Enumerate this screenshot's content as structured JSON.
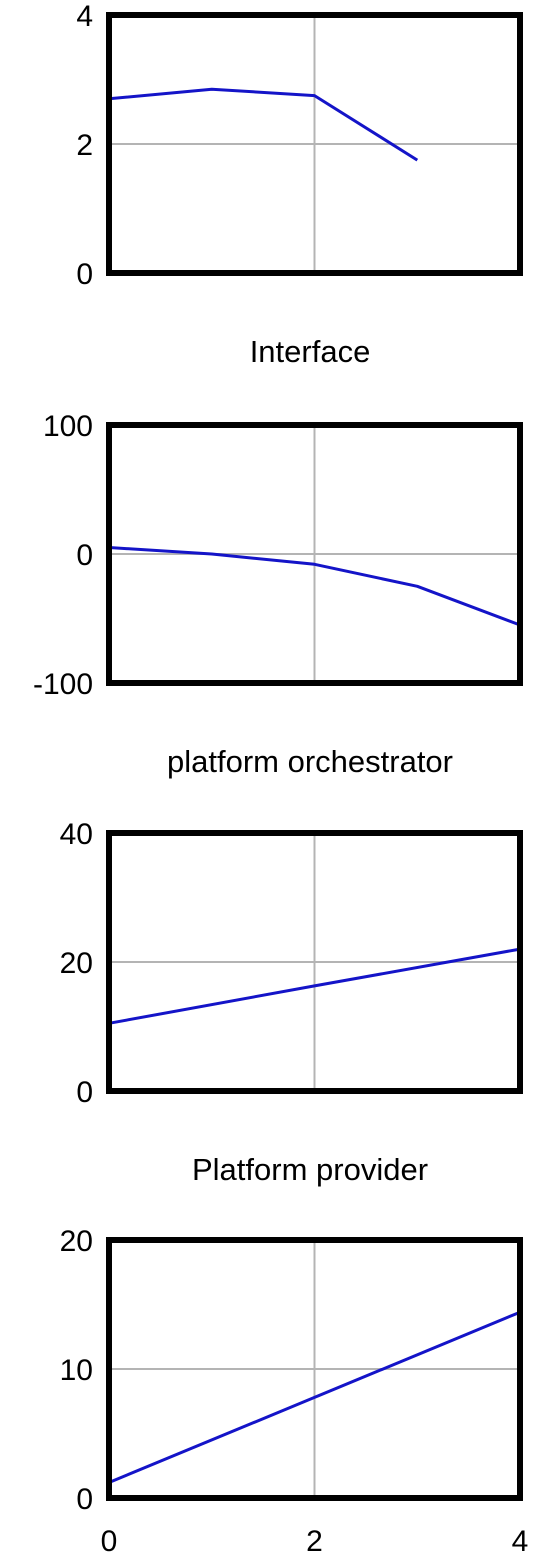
{
  "colors": {
    "line": "#1414c8",
    "grid": "#b4b4b4",
    "frame": "#000000",
    "text": "#000000",
    "background": "#ffffff"
  },
  "chart_data": [
    {
      "type": "line",
      "title": "",
      "xlabel": "",
      "ylabel": "",
      "xlim": [
        0,
        4
      ],
      "ylim": [
        0,
        4
      ],
      "yticks": [
        "0",
        "2",
        "4"
      ],
      "xticks": [],
      "grid": true,
      "series": [
        {
          "x": [
            0,
            1,
            2,
            3
          ],
          "y": [
            2.7,
            2.85,
            2.75,
            1.75
          ]
        }
      ]
    },
    {
      "type": "line",
      "title": "Interface",
      "xlabel": "",
      "ylabel": "",
      "xlim": [
        0,
        4
      ],
      "ylim": [
        -100,
        100
      ],
      "yticks": [
        "-100",
        "0",
        "100"
      ],
      "xticks": [],
      "grid": true,
      "series": [
        {
          "x": [
            0,
            1,
            2,
            3,
            4
          ],
          "y": [
            5,
            0,
            -8,
            -25,
            -55
          ]
        }
      ]
    },
    {
      "type": "line",
      "title": "platform orchestrator",
      "xlabel": "",
      "ylabel": "",
      "xlim": [
        0,
        4
      ],
      "ylim": [
        0,
        40
      ],
      "yticks": [
        "0",
        "20",
        "40"
      ],
      "xticks": [],
      "grid": true,
      "series": [
        {
          "x": [
            0,
            2,
            4
          ],
          "y": [
            10.5,
            16.3,
            22
          ]
        }
      ]
    },
    {
      "type": "line",
      "title": "Platform provider",
      "xlabel": "",
      "ylabel": "",
      "xlim": [
        0,
        4
      ],
      "ylim": [
        0,
        20
      ],
      "yticks": [
        "0",
        "10",
        "20"
      ],
      "xticks": [
        "0",
        "2",
        "4"
      ],
      "grid": true,
      "series": [
        {
          "x": [
            0,
            2,
            4
          ],
          "y": [
            1.2,
            7.8,
            14.4
          ]
        }
      ]
    }
  ]
}
